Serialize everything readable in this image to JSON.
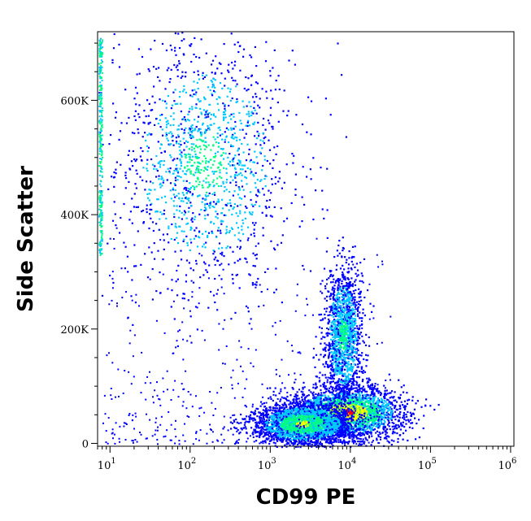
{
  "chart_data": {
    "type": "scatter",
    "subtype": "flow-cytometry-density-dot-plot",
    "title": "",
    "xlabel": "CD99 PE",
    "ylabel": "Side Scatter",
    "x_scale": "log",
    "y_scale": "linear",
    "xlim": [
      7,
      1100000
    ],
    "ylim": [
      -5000,
      720000
    ],
    "grid": false,
    "legend": "none",
    "x_ticks": [
      {
        "value": 10,
        "base": "10",
        "exp": "1"
      },
      {
        "value": 100,
        "base": "10",
        "exp": "2"
      },
      {
        "value": 1000,
        "base": "10",
        "exp": "3"
      },
      {
        "value": 10000,
        "base": "10",
        "exp": "4"
      },
      {
        "value": 100000,
        "base": "10",
        "exp": "5"
      },
      {
        "value": 1000000,
        "base": "10",
        "exp": "6"
      }
    ],
    "y_ticks": [
      {
        "value": 0,
        "label": "0"
      },
      {
        "value": 200000,
        "label": "200K"
      },
      {
        "value": 400000,
        "label": "400K"
      },
      {
        "value": 600000,
        "label": "600K"
      }
    ],
    "density_colors": [
      "#0000ff",
      "#00c8ff",
      "#00ff80",
      "#ffff00",
      "#ff0000"
    ],
    "populations": [
      {
        "name": "",
        "x_center": 150,
        "y_center": 490000,
        "x_spread_decades": 0.55,
        "y_spread": 110000,
        "density": "medium",
        "peak_color": "#00ff80"
      },
      {
        "name": "",
        "x_center": 9000,
        "y_center": 55000,
        "x_spread_decades": 0.35,
        "y_spread": 22000,
        "density": "high",
        "peak_color": "#ff0000"
      },
      {
        "name": "",
        "x_center": 2500,
        "y_center": 35000,
        "x_spread_decades": 0.3,
        "y_spread": 18000,
        "density": "high",
        "peak_color": "#ffff00"
      },
      {
        "name": "",
        "x_center": 8000,
        "y_center": 190000,
        "x_spread_decades": 0.12,
        "y_spread": 60000,
        "density": "medium",
        "peak_color": "#00ff80"
      }
    ]
  }
}
